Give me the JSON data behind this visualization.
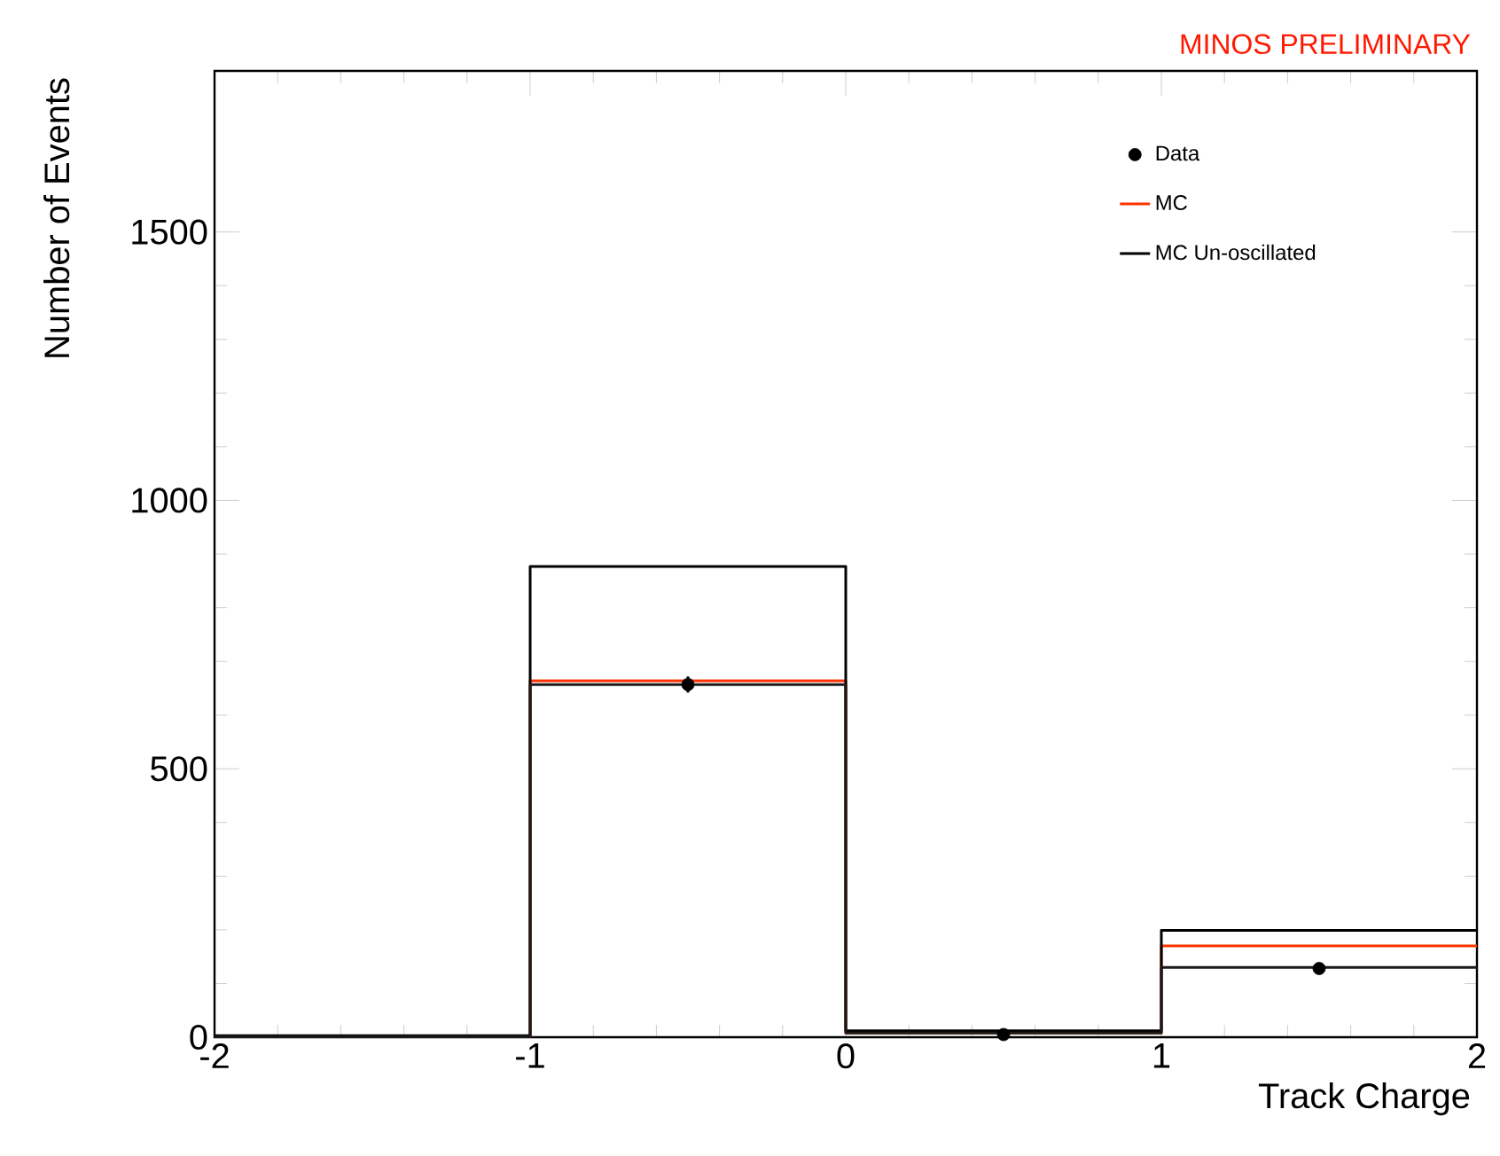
{
  "chart_data": {
    "type": "histogram",
    "bins": [
      -2,
      -1,
      0,
      1,
      2
    ],
    "series": [
      {
        "name": "Data",
        "type": "scatter",
        "color": "#000000",
        "x": [
          -0.5,
          0.5,
          1.5
        ],
        "values": [
          657,
          5,
          128
        ],
        "errors": [
          15,
          null,
          null
        ]
      },
      {
        "name": "MC",
        "color": "#ff3300",
        "values": [
          1,
          664,
          8,
          170
        ]
      },
      {
        "name": "MC Un-oscillated",
        "color": "#000000",
        "values": [
          3,
          877,
          12,
          199
        ]
      },
      {
        "color": "#1a1a1a",
        "values": [
          1,
          657,
          8,
          130
        ]
      }
    ],
    "xlim": [
      -2,
      2
    ],
    "ylim": [
      0,
      1800
    ],
    "xticks": [
      -2,
      -1,
      0,
      1,
      2
    ],
    "yticks": [
      0,
      500,
      1000,
      1500
    ],
    "xlabel": "Track Charge",
    "ylabel": "Number of Events",
    "legend": "top right",
    "annotations": [
      "MINOS PRELIMINARY"
    ]
  }
}
